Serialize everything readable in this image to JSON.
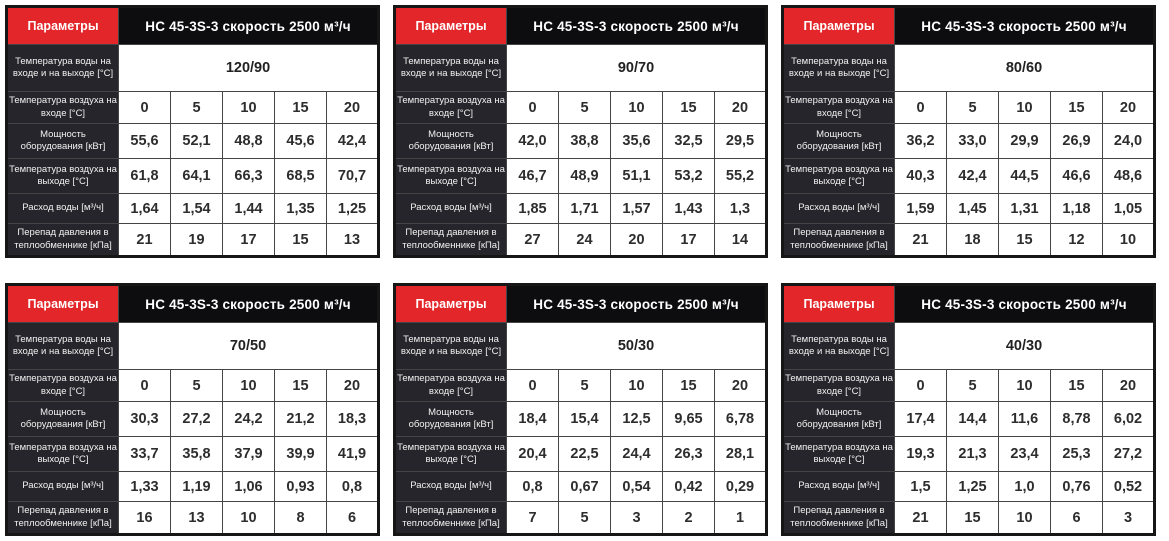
{
  "colors": {
    "accent_red": "#e32629",
    "title_bg": "#0d0d0f",
    "label_bg": "#26252b",
    "outer_border": "#161616",
    "cell_border": "#454545",
    "value_text": "#2d2d2d"
  },
  "params_label": "Параметры",
  "row_labels": [
    "Температура воды на входе и на выходе [°C]",
    "Температура воздуха на входе [°C]",
    "Мощность оборудования [кВт]",
    "Температура воздуха на выходе [°C]",
    "Расход воды [м³/ч]",
    "Перепад давления в теплообменнике [кПа]"
  ],
  "tables": [
    {
      "title": "НС 45-3S-3 скорость 2500 м³/ч",
      "water_temp": "120/90",
      "air_in": [
        "0",
        "5",
        "10",
        "15",
        "20"
      ],
      "power": [
        "55,6",
        "52,1",
        "48,8",
        "45,6",
        "42,4"
      ],
      "air_out": [
        "61,8",
        "64,1",
        "66,3",
        "68,5",
        "70,7"
      ],
      "water_flow": [
        "1,64",
        "1,54",
        "1,44",
        "1,35",
        "1,25"
      ],
      "pressure_drop": [
        "21",
        "19",
        "17",
        "15",
        "13"
      ]
    },
    {
      "title": "НС 45-3S-3 скорость 2500 м³/ч",
      "water_temp": "90/70",
      "air_in": [
        "0",
        "5",
        "10",
        "15",
        "20"
      ],
      "power": [
        "42,0",
        "38,8",
        "35,6",
        "32,5",
        "29,5"
      ],
      "air_out": [
        "46,7",
        "48,9",
        "51,1",
        "53,2",
        "55,2"
      ],
      "water_flow": [
        "1,85",
        "1,71",
        "1,57",
        "1,43",
        "1,3"
      ],
      "pressure_drop": [
        "27",
        "24",
        "20",
        "17",
        "14"
      ]
    },
    {
      "title": "НС 45-3S-3 скорость 2500 м³/ч",
      "water_temp": "80/60",
      "air_in": [
        "0",
        "5",
        "10",
        "15",
        "20"
      ],
      "power": [
        "36,2",
        "33,0",
        "29,9",
        "26,9",
        "24,0"
      ],
      "air_out": [
        "40,3",
        "42,4",
        "44,5",
        "46,6",
        "48,6"
      ],
      "water_flow": [
        "1,59",
        "1,45",
        "1,31",
        "1,18",
        "1,05"
      ],
      "pressure_drop": [
        "21",
        "18",
        "15",
        "12",
        "10"
      ]
    },
    {
      "title": "НС 45-3S-3 скорость 2500 м³/ч",
      "water_temp": "70/50",
      "air_in": [
        "0",
        "5",
        "10",
        "15",
        "20"
      ],
      "power": [
        "30,3",
        "27,2",
        "24,2",
        "21,2",
        "18,3"
      ],
      "air_out": [
        "33,7",
        "35,8",
        "37,9",
        "39,9",
        "41,9"
      ],
      "water_flow": [
        "1,33",
        "1,19",
        "1,06",
        "0,93",
        "0,8"
      ],
      "pressure_drop": [
        "16",
        "13",
        "10",
        "8",
        "6"
      ]
    },
    {
      "title": "НС 45-3S-3 скорость 2500 м³/ч",
      "water_temp": "50/30",
      "air_in": [
        "0",
        "5",
        "10",
        "15",
        "20"
      ],
      "power": [
        "18,4",
        "15,4",
        "12,5",
        "9,65",
        "6,78"
      ],
      "air_out": [
        "20,4",
        "22,5",
        "24,4",
        "26,3",
        "28,1"
      ],
      "water_flow": [
        "0,8",
        "0,67",
        "0,54",
        "0,42",
        "0,29"
      ],
      "pressure_drop": [
        "7",
        "5",
        "3",
        "2",
        "1"
      ]
    },
    {
      "title": "НС 45-3S-3 скорость 2500 м³/ч",
      "water_temp": "40/30",
      "air_in": [
        "0",
        "5",
        "10",
        "15",
        "20"
      ],
      "power": [
        "17,4",
        "14,4",
        "11,6",
        "8,78",
        "6,02"
      ],
      "air_out": [
        "19,3",
        "21,3",
        "23,4",
        "25,3",
        "27,2"
      ],
      "water_flow": [
        "1,5",
        "1,25",
        "1,0",
        "0,76",
        "0,52"
      ],
      "pressure_drop": [
        "21",
        "15",
        "10",
        "6",
        "3"
      ]
    }
  ]
}
